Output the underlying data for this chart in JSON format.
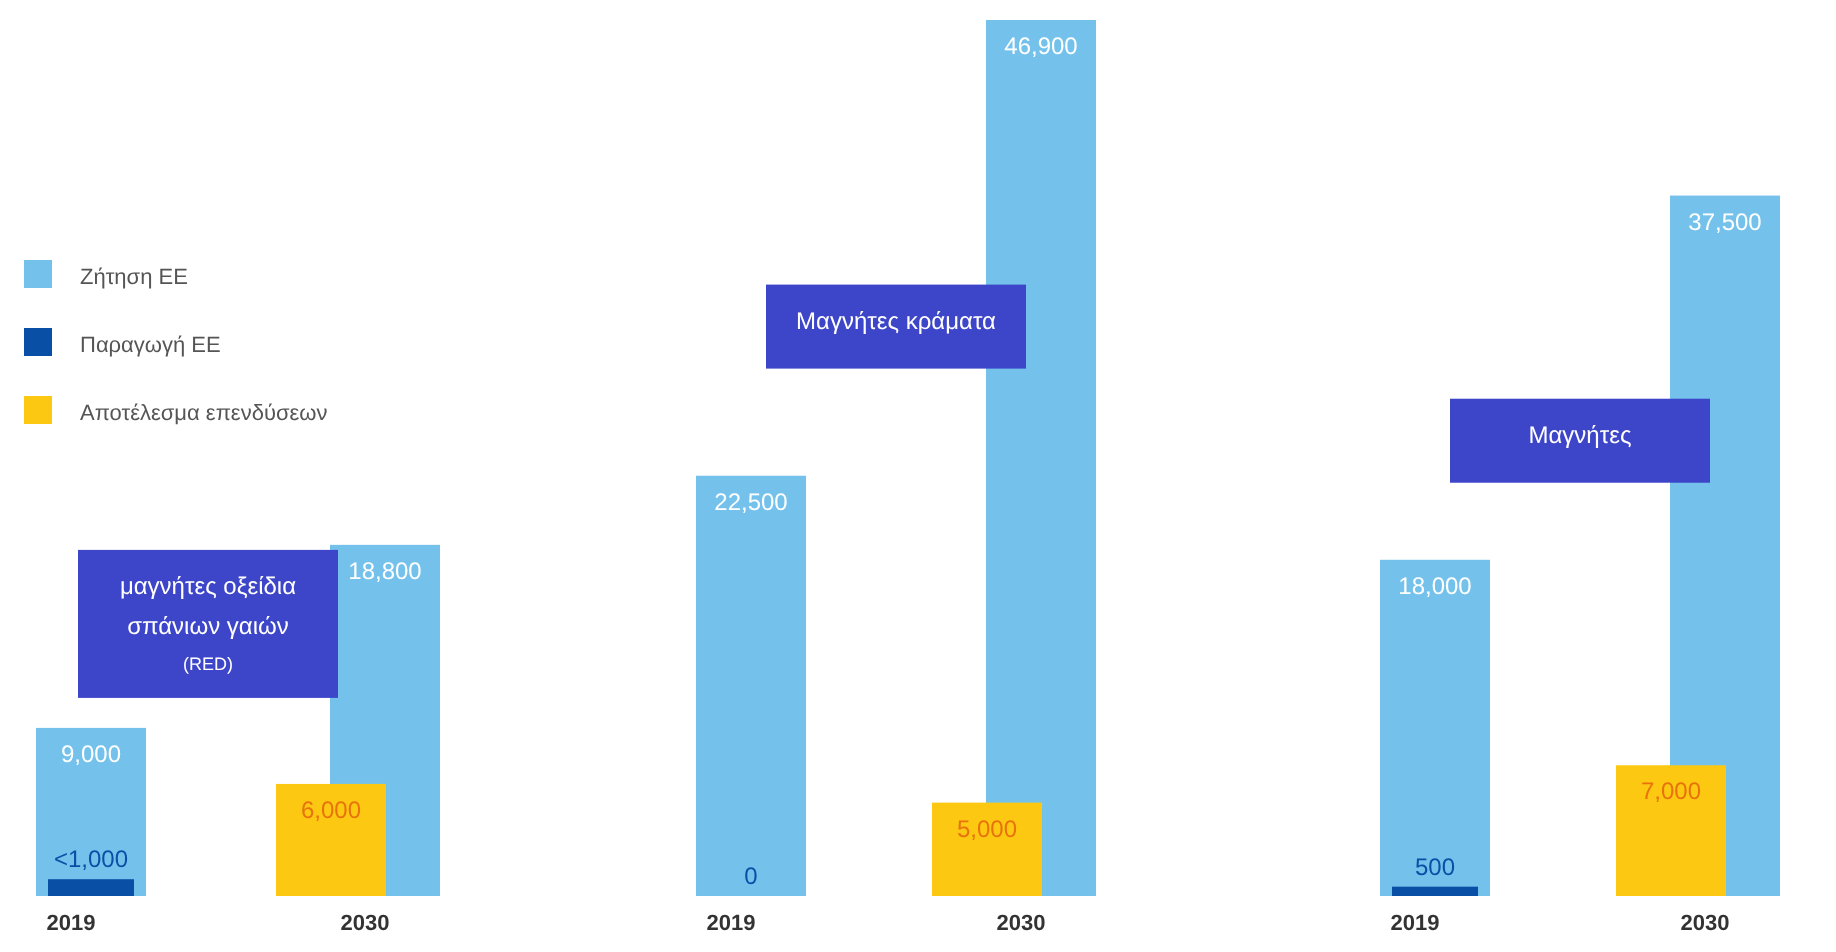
{
  "chart_data": [
    {
      "type": "bar",
      "title": "μαγνήτες οξείδια σπάνιων γαιών",
      "subtitle": "(RED)",
      "categories": [
        "2019",
        "2030"
      ],
      "legend": "left",
      "data_labels": true,
      "series": [
        {
          "name": "Ζήτηση ΕΕ",
          "color": "#74c2ec",
          "values": [
            9000,
            18800
          ],
          "value_labels": [
            "9,000",
            "18,800"
          ]
        },
        {
          "name": "Παραγωγή ΕΕ",
          "color": "#0a4fa6",
          "values": [
            900,
            null
          ],
          "value_labels": [
            "<1,000",
            null
          ]
        },
        {
          "name": "Αποτέλεσμα επενδύσεων",
          "color": "#fcc812",
          "values": [
            null,
            6000
          ],
          "value_labels": [
            null,
            "6,000"
          ]
        }
      ]
    },
    {
      "type": "bar",
      "title": "Μαγνήτες κράματα",
      "categories": [
        "2019",
        "2030"
      ],
      "data_labels": true,
      "series": [
        {
          "color": "#74c2ec",
          "values": [
            22500,
            46900
          ],
          "value_labels": [
            "22,500",
            "46,900"
          ]
        },
        {
          "color": "#0a4fa6",
          "values": [
            0,
            null
          ],
          "value_labels": [
            "0",
            null
          ]
        },
        {
          "color": "#fcc812",
          "values": [
            null,
            5000
          ],
          "value_labels": [
            null,
            "5,000"
          ]
        }
      ]
    },
    {
      "type": "bar",
      "title": "Μαγνήτες",
      "categories": [
        "2019",
        "2030"
      ],
      "data_labels": true,
      "series": [
        {
          "color": "#74c2ec",
          "values": [
            18000,
            37500
          ],
          "value_labels": [
            "18,000",
            "37,500"
          ]
        },
        {
          "color": "#0a4fa6",
          "values": [
            500,
            null
          ],
          "value_labels": [
            "500",
            null
          ]
        },
        {
          "color": "#fcc812",
          "values": [
            null,
            7000
          ],
          "value_labels": [
            null,
            "7,000"
          ]
        }
      ]
    }
  ]
}
